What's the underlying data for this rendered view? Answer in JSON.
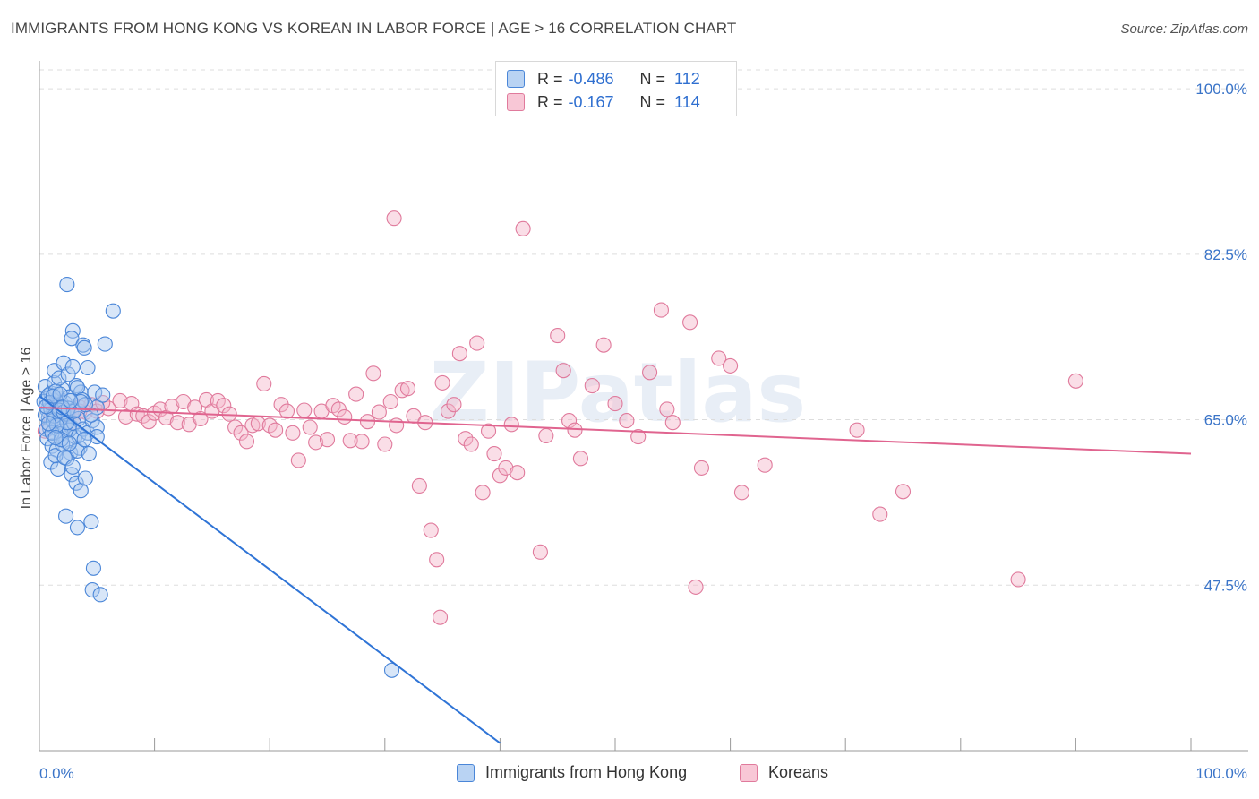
{
  "title": "IMMIGRANTS FROM HONG KONG VS KOREAN IN LABOR FORCE | AGE > 16 CORRELATION CHART",
  "source": "Source: ZipAtlas.com",
  "watermark": "ZIPatlas",
  "colors": {
    "blue_fill": "#a9c8f0",
    "blue_stroke": "#4a86d8",
    "blue_line": "#2f74d6",
    "pink_fill": "#f4b6c9",
    "pink_stroke": "#e07a9c",
    "pink_line": "#e0648f",
    "axis_text": "#3a74c8",
    "grid": "#dddddd"
  },
  "legend_top": {
    "rows": [
      {
        "r_label": "R =",
        "r_value": "-0.486",
        "n_label": "N =",
        "n_value": "112"
      },
      {
        "r_label": "R =",
        "r_value": "-0.167",
        "n_label": "N =",
        "n_value": "114"
      }
    ]
  },
  "legend_bottom": [
    "Immigrants from Hong Kong",
    "Koreans"
  ],
  "chart_data": {
    "type": "scatter",
    "title": "IMMIGRANTS FROM HONG KONG VS KOREAN IN LABOR FORCE | AGE > 16 CORRELATION CHART",
    "xlabel": "",
    "ylabel": "In Labor Force | Age > 16",
    "xlim": [
      0,
      100
    ],
    "ylim": [
      30,
      102
    ],
    "x_tick_labels": [
      "0.0%",
      "100.0%"
    ],
    "y_ticks": [
      47.5,
      65.0,
      82.5,
      100.0
    ],
    "y_tick_labels": [
      "47.5%",
      "65.0%",
      "82.5%",
      "100.0%"
    ],
    "grid": true,
    "legend": "top-center",
    "series": [
      {
        "name": "Immigrants from Hong Kong",
        "r": -0.486,
        "n": 112,
        "trend": {
          "x": [
            0.0,
            40.0
          ],
          "y": [
            67.5,
            30.8
          ]
        },
        "points": [
          [
            0.5,
            68.5
          ],
          [
            0.6,
            67.2
          ],
          [
            0.7,
            66.0
          ],
          [
            0.8,
            65.2
          ],
          [
            0.9,
            64.1
          ],
          [
            1.0,
            67.8
          ],
          [
            1.1,
            66.5
          ],
          [
            1.2,
            65.7
          ],
          [
            1.3,
            68.9
          ],
          [
            1.4,
            67.0
          ],
          [
            1.5,
            66.2
          ],
          [
            1.6,
            64.8
          ],
          [
            1.7,
            67.3
          ],
          [
            1.8,
            65.9
          ],
          [
            1.9,
            66.7
          ],
          [
            2.0,
            68.2
          ],
          [
            2.1,
            65.3
          ],
          [
            2.2,
            64.5
          ],
          [
            0.4,
            66.9
          ],
          [
            0.5,
            65.5
          ],
          [
            0.6,
            64.0
          ],
          [
            0.8,
            67.6
          ],
          [
            1.0,
            66.1
          ],
          [
            1.2,
            64.9
          ],
          [
            1.4,
            68.0
          ],
          [
            1.6,
            66.4
          ],
          [
            1.8,
            65.0
          ],
          [
            2.0,
            63.8
          ],
          [
            2.2,
            66.8
          ],
          [
            2.4,
            65.6
          ],
          [
            2.6,
            67.4
          ],
          [
            2.8,
            64.2
          ],
          [
            3.0,
            66.0
          ],
          [
            3.2,
            68.6
          ],
          [
            3.4,
            65.1
          ],
          [
            3.6,
            67.9
          ],
          [
            0.7,
            63.0
          ],
          [
            1.1,
            62.2
          ],
          [
            1.5,
            61.8
          ],
          [
            1.9,
            63.5
          ],
          [
            2.3,
            62.7
          ],
          [
            2.7,
            61.5
          ],
          [
            3.1,
            63.2
          ],
          [
            3.5,
            62.0
          ],
          [
            1.3,
            70.2
          ],
          [
            1.7,
            69.4
          ],
          [
            2.1,
            71.0
          ],
          [
            2.5,
            69.8
          ],
          [
            2.9,
            70.6
          ],
          [
            3.3,
            68.4
          ],
          [
            3.7,
            67.1
          ],
          [
            1.0,
            60.5
          ],
          [
            1.6,
            59.8
          ],
          [
            2.4,
            60.9
          ],
          [
            2.8,
            59.2
          ],
          [
            3.2,
            58.3
          ],
          [
            3.6,
            57.5
          ],
          [
            4.0,
            58.8
          ],
          [
            1.4,
            61.2
          ],
          [
            2.0,
            62.4
          ],
          [
            2.6,
            63.9
          ],
          [
            3.0,
            64.6
          ],
          [
            3.4,
            63.3
          ],
          [
            3.8,
            64.0
          ],
          [
            4.2,
            63.6
          ],
          [
            4.6,
            64.9
          ],
          [
            5.0,
            64.2
          ],
          [
            5.0,
            66.3
          ],
          [
            4.5,
            65.5
          ],
          [
            4.0,
            66.6
          ],
          [
            4.8,
            67.9
          ],
          [
            5.5,
            67.6
          ],
          [
            4.2,
            70.5
          ],
          [
            2.3,
            54.8
          ],
          [
            3.3,
            53.6
          ],
          [
            4.5,
            54.2
          ],
          [
            4.7,
            49.3
          ],
          [
            4.6,
            47.0
          ],
          [
            5.3,
            46.5
          ],
          [
            2.4,
            79.3
          ],
          [
            6.4,
            76.5
          ],
          [
            2.9,
            74.4
          ],
          [
            2.8,
            73.6
          ],
          [
            3.8,
            72.9
          ],
          [
            3.9,
            72.6
          ],
          [
            5.7,
            73.0
          ],
          [
            5.0,
            63.2
          ],
          [
            0.9,
            66.8
          ],
          [
            1.3,
            65.4
          ],
          [
            1.7,
            66.0
          ],
          [
            2.1,
            65.8
          ],
          [
            2.5,
            66.2
          ],
          [
            0.6,
            66.4
          ],
          [
            1.2,
            67.5
          ],
          [
            1.8,
            67.7
          ],
          [
            2.4,
            64.7
          ],
          [
            3.0,
            65.9
          ],
          [
            3.6,
            66.9
          ],
          [
            1.1,
            63.6
          ],
          [
            1.5,
            64.4
          ],
          [
            2.2,
            61.0
          ],
          [
            2.9,
            60.0
          ],
          [
            3.3,
            61.7
          ],
          [
            1.9,
            62.9
          ],
          [
            2.6,
            62.5
          ],
          [
            3.9,
            62.9
          ],
          [
            4.3,
            61.4
          ],
          [
            0.8,
            64.6
          ],
          [
            1.4,
            63.1
          ],
          [
            2.0,
            66.3
          ],
          [
            2.7,
            67.0
          ],
          [
            30.6,
            38.5
          ]
        ]
      },
      {
        "name": "Koreans",
        "r": -0.167,
        "n": 114,
        "trend": {
          "x": [
            0.0,
            100.0
          ],
          "y": [
            66.3,
            61.4
          ]
        },
        "points": [
          [
            0.5,
            63.8
          ],
          [
            1.0,
            65.2
          ],
          [
            1.5,
            64.9
          ],
          [
            2.0,
            66.1
          ],
          [
            2.5,
            65.4
          ],
          [
            3.0,
            64.7
          ],
          [
            3.5,
            66.3
          ],
          [
            4.0,
            65.8
          ],
          [
            4.5,
            66.6
          ],
          [
            5.0,
            65.9
          ],
          [
            6.0,
            66.2
          ],
          [
            7.0,
            67.0
          ],
          [
            7.5,
            65.3
          ],
          [
            8.0,
            66.7
          ],
          [
            8.5,
            65.6
          ],
          [
            9.0,
            65.4
          ],
          [
            9.5,
            64.8
          ],
          [
            10.0,
            65.7
          ],
          [
            10.5,
            66.1
          ],
          [
            11.0,
            65.2
          ],
          [
            11.5,
            66.4
          ],
          [
            12.0,
            64.7
          ],
          [
            12.5,
            66.9
          ],
          [
            13.0,
            64.5
          ],
          [
            13.5,
            66.3
          ],
          [
            14.0,
            65.1
          ],
          [
            14.5,
            67.1
          ],
          [
            15.0,
            65.9
          ],
          [
            15.5,
            67.0
          ],
          [
            16.0,
            66.5
          ],
          [
            16.5,
            65.6
          ],
          [
            17.0,
            64.2
          ],
          [
            17.5,
            63.6
          ],
          [
            18.0,
            62.7
          ],
          [
            18.5,
            64.4
          ],
          [
            19.0,
            64.6
          ],
          [
            19.5,
            68.8
          ],
          [
            20.0,
            64.4
          ],
          [
            20.5,
            63.9
          ],
          [
            21.0,
            66.6
          ],
          [
            21.5,
            65.9
          ],
          [
            22.0,
            63.6
          ],
          [
            22.5,
            60.7
          ],
          [
            23.0,
            66.0
          ],
          [
            23.5,
            64.2
          ],
          [
            24.0,
            62.6
          ],
          [
            24.5,
            65.9
          ],
          [
            25.0,
            62.9
          ],
          [
            25.5,
            66.5
          ],
          [
            26.0,
            66.1
          ],
          [
            26.5,
            65.3
          ],
          [
            27.0,
            62.8
          ],
          [
            27.5,
            67.7
          ],
          [
            28.0,
            62.7
          ],
          [
            28.5,
            64.8
          ],
          [
            29.0,
            69.9
          ],
          [
            29.5,
            65.8
          ],
          [
            30.0,
            62.4
          ],
          [
            30.5,
            66.9
          ],
          [
            31.0,
            64.4
          ],
          [
            31.5,
            68.1
          ],
          [
            32.0,
            68.3
          ],
          [
            32.5,
            65.4
          ],
          [
            33.0,
            58.0
          ],
          [
            33.5,
            64.7
          ],
          [
            34.0,
            53.3
          ],
          [
            34.5,
            50.2
          ],
          [
            34.8,
            44.1
          ],
          [
            35.0,
            68.9
          ],
          [
            35.5,
            65.9
          ],
          [
            36.0,
            66.6
          ],
          [
            36.5,
            72.0
          ],
          [
            37.0,
            63.0
          ],
          [
            37.5,
            62.4
          ],
          [
            38.0,
            73.1
          ],
          [
            38.5,
            57.3
          ],
          [
            39.0,
            63.8
          ],
          [
            39.5,
            61.4
          ],
          [
            40.0,
            59.1
          ],
          [
            40.5,
            59.9
          ],
          [
            41.0,
            64.5
          ],
          [
            41.5,
            59.4
          ],
          [
            42.0,
            85.2
          ],
          [
            43.5,
            51.0
          ],
          [
            44.0,
            63.3
          ],
          [
            45.0,
            73.9
          ],
          [
            45.5,
            70.2
          ],
          [
            46.0,
            64.9
          ],
          [
            46.5,
            63.9
          ],
          [
            47.0,
            60.9
          ],
          [
            48.0,
            68.6
          ],
          [
            49.0,
            72.9
          ],
          [
            50.0,
            66.7
          ],
          [
            51.0,
            64.9
          ],
          [
            52.0,
            63.2
          ],
          [
            53.0,
            70.0
          ],
          [
            54.0,
            76.6
          ],
          [
            54.5,
            66.1
          ],
          [
            55.0,
            64.7
          ],
          [
            56.5,
            75.3
          ],
          [
            57.0,
            47.3
          ],
          [
            57.5,
            59.9
          ],
          [
            59.0,
            71.5
          ],
          [
            60.0,
            70.7
          ],
          [
            61.0,
            57.3
          ],
          [
            63.0,
            60.2
          ],
          [
            71.0,
            63.9
          ],
          [
            73.0,
            55.0
          ],
          [
            75.0,
            57.4
          ],
          [
            85.0,
            48.1
          ],
          [
            90.0,
            69.1
          ],
          [
            30.8,
            86.3
          ],
          [
            3.5,
            65.9
          ],
          [
            5.5,
            66.8
          ]
        ]
      }
    ]
  }
}
